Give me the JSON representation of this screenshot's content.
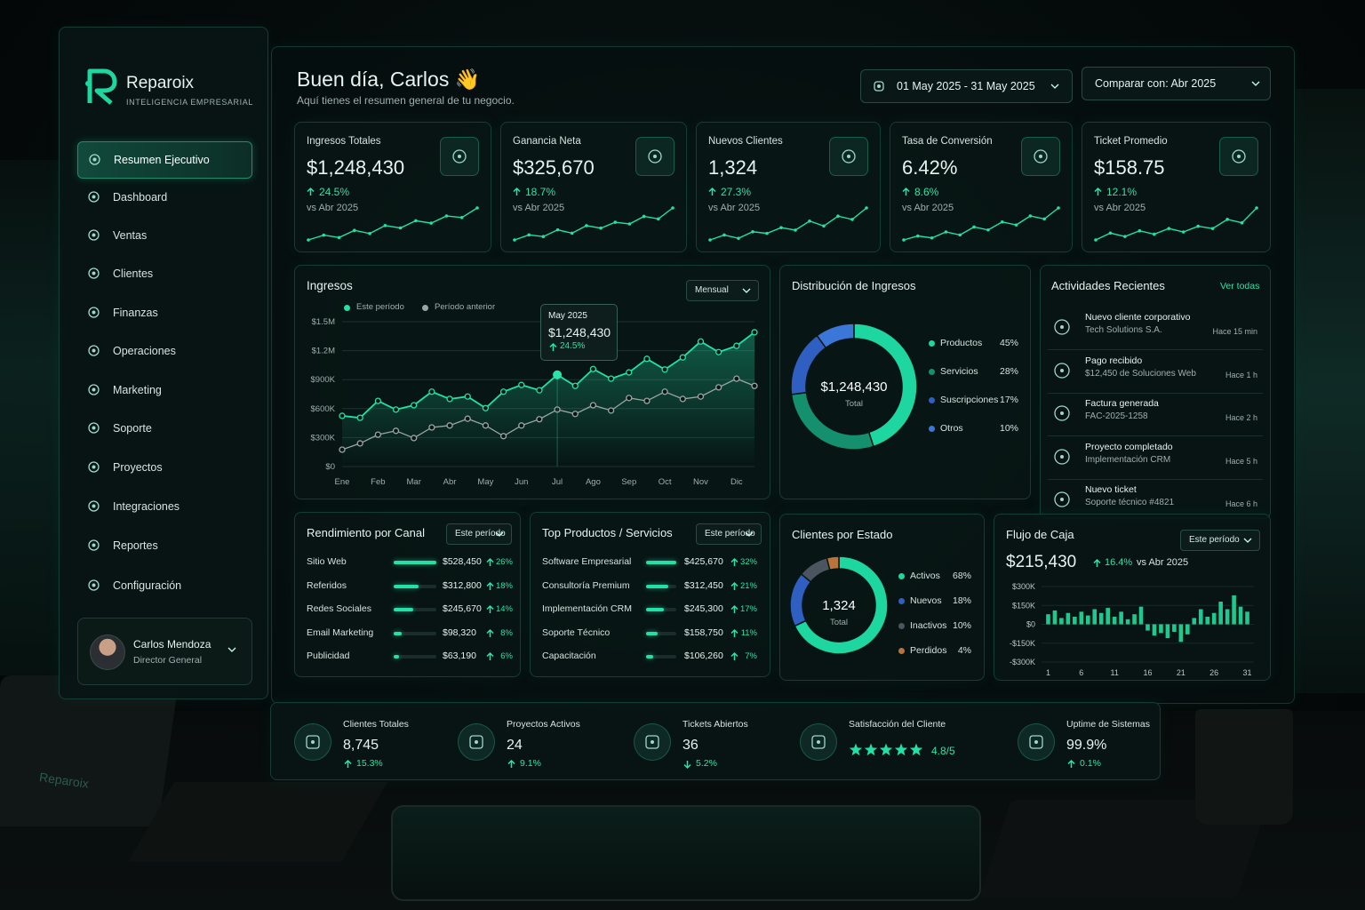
{
  "brand": {
    "name": "Reparoix",
    "tagline": "INTELIGENCIA EMPRESARIAL"
  },
  "nav": [
    "Resumen Ejecutivo",
    "Dashboard",
    "Ventas",
    "Clientes",
    "Finanzas",
    "Operaciones",
    "Marketing",
    "Soporte",
    "Proyectos",
    "Integraciones",
    "Reportes",
    "Configuración"
  ],
  "user": {
    "name": "Carlos Mendoza",
    "role": "Director General"
  },
  "header": {
    "greeting": "Buen día, Carlos 👋",
    "subtitle": "Aquí tienes el resumen general de tu negocio.",
    "date_range": "01 May 2025 - 31 May 2025",
    "compare": "Comparar con: Abr 2025"
  },
  "kpis": [
    {
      "label": "Ingresos Totales",
      "value": "$1,248,430",
      "change": "24.5%",
      "compare": "vs Abr 2025",
      "trend": [
        12,
        18,
        15,
        24,
        20,
        30,
        27,
        36,
        33,
        42,
        40,
        52
      ]
    },
    {
      "label": "Ganancia Neta",
      "value": "$325,670",
      "change": "18.7%",
      "compare": "vs Abr 2025",
      "trend": [
        10,
        16,
        14,
        22,
        18,
        27,
        24,
        31,
        29,
        38,
        35,
        48
      ]
    },
    {
      "label": "Nuevos Clientes",
      "value": "1,324",
      "change": "27.3%",
      "compare": "vs Abr 2025",
      "trend": [
        11,
        17,
        13,
        21,
        19,
        26,
        23,
        34,
        28,
        40,
        36,
        50
      ]
    },
    {
      "label": "Tasa de Conversión",
      "value": "6.42%",
      "change": "8.6%",
      "compare": "vs Abr 2025",
      "trend": [
        12,
        16,
        14,
        20,
        17,
        25,
        22,
        30,
        27,
        36,
        33,
        44
      ]
    },
    {
      "label": "Ticket Promedio",
      "value": "$158.75",
      "change": "12.1%",
      "compare": "vs Abr 2025",
      "trend": [
        12,
        18,
        15,
        20,
        17,
        22,
        19,
        24,
        22,
        30,
        27,
        40
      ]
    }
  ],
  "revenue_chart": {
    "type": "line",
    "title": "Ingresos",
    "period": "Mensual",
    "categories": [
      "Ene",
      null,
      "Feb",
      null,
      "Mar",
      null,
      "Abr",
      null,
      "May",
      null,
      "Jun",
      null,
      "Jul",
      null,
      "Ago",
      null,
      "Sep",
      null,
      "Oct",
      null,
      "Nov",
      null,
      "Dic",
      null
    ],
    "series": [
      {
        "name": "Este período",
        "color": "#22e0a8",
        "values": [
          525000,
          505000,
          680000,
          590000,
          635000,
          775000,
          700000,
          725000,
          605000,
          775000,
          845000,
          790000,
          950000,
          835000,
          1010000,
          910000,
          975000,
          1115000,
          1005000,
          1130000,
          1295000,
          1185000,
          1250000,
          1390000
        ]
      },
      {
        "name": "Período anterior",
        "color": "#9aa6a3",
        "values": [
          175000,
          240000,
          330000,
          370000,
          295000,
          405000,
          425000,
          495000,
          425000,
          315000,
          425000,
          490000,
          590000,
          545000,
          635000,
          580000,
          710000,
          680000,
          775000,
          700000,
          725000,
          820000,
          910000,
          835000
        ]
      }
    ],
    "ylim": [
      0,
      1500000
    ],
    "yticks": [
      {
        "value": 0,
        "label": "$0"
      },
      {
        "value": 300000,
        "label": "$300K"
      },
      {
        "value": 600000,
        "label": "$600K"
      },
      {
        "value": 900000,
        "label": "$900K"
      },
      {
        "value": 1200000,
        "label": "$1.2M"
      },
      {
        "value": 1500000,
        "label": "$1.5M"
      }
    ],
    "grid": true,
    "tooltip": {
      "title": "May 2025",
      "value": "$1,248,430",
      "change": "24.5%"
    }
  },
  "distribution": {
    "type": "pie",
    "title": "Distribución de Ingresos",
    "center_value": "$1,248,430",
    "center_label": "Total",
    "categories": [
      "Productos",
      "Servicios",
      "Suscripciones",
      "Otros"
    ],
    "values": [
      45,
      28,
      17,
      10
    ],
    "value_labels": [
      "45%",
      "28%",
      "17%",
      "10%"
    ],
    "colors": [
      "#1ed6a0",
      "#15906e",
      "#2f5fc0",
      "#3a77d8"
    ]
  },
  "activities": {
    "title": "Actividades Recientes",
    "link": "Ver todas",
    "items": [
      {
        "title": "Nuevo cliente corporativo",
        "detail": "Tech Solutions S.A.",
        "time": "Hace 15 min"
      },
      {
        "title": "Pago recibido",
        "detail": "$12,450 de Soluciones Web",
        "time": "Hace 1 h"
      },
      {
        "title": "Factura generada",
        "detail": "FAC-2025-1258",
        "time": "Hace 2 h"
      },
      {
        "title": "Proyecto completado",
        "detail": "Implementación CRM",
        "time": "Hace 5 h"
      },
      {
        "title": "Nuevo ticket",
        "detail": "Soporte técnico #4821",
        "time": "Hace 6 h"
      }
    ]
  },
  "channels": {
    "title": "Rendimiento por Canal",
    "period": "Este período",
    "categories": [
      "Sitio Web",
      "Referidos",
      "Redes Sociales",
      "Email Marketing",
      "Publicidad"
    ],
    "values": [
      528450,
      312800,
      245670,
      98320,
      63190
    ],
    "value_labels": [
      "$528,450",
      "$312,800",
      "$245,670",
      "$98,320",
      "$63,190"
    ],
    "changes": [
      "26%",
      "18%",
      "14%",
      "8%",
      "6%"
    ]
  },
  "products": {
    "title": "Top Productos / Servicios",
    "period": "Este período",
    "categories": [
      "Software Empresarial",
      "Consultoría Premium",
      "Implementación CRM",
      "Soporte Técnico",
      "Capacitación"
    ],
    "values": [
      425670,
      312450,
      245300,
      158750,
      106260
    ],
    "value_labels": [
      "$425,670",
      "$312,450",
      "$245,300",
      "$158,750",
      "$106,260"
    ],
    "changes": [
      "32%",
      "21%",
      "17%",
      "11%",
      "7%"
    ]
  },
  "clients": {
    "type": "pie",
    "title": "Clientes por Estado",
    "center_value": "1,324",
    "center_label": "Total",
    "categories": [
      "Activos",
      "Nuevos",
      "Inactivos",
      "Perdidos"
    ],
    "values": [
      68,
      18,
      10,
      4
    ],
    "value_labels": [
      "68%",
      "18%",
      "10%",
      "4%"
    ],
    "colors": [
      "#1ed6a0",
      "#2f5fc0",
      "#4a5560",
      "#b8743a"
    ]
  },
  "cash_flow": {
    "type": "bar",
    "title": "Flujo de Caja",
    "period": "Este período",
    "total": "$215,430",
    "change": "16.4%",
    "compare": "vs Abr 2025",
    "color": "#1ec98f",
    "x": [
      1,
      2,
      3,
      4,
      5,
      6,
      7,
      8,
      9,
      10,
      11,
      12,
      13,
      14,
      15,
      16,
      17,
      18,
      19,
      20,
      21,
      22,
      23,
      24,
      25,
      26,
      27,
      28,
      29,
      30,
      31
    ],
    "values": [
      80000,
      110000,
      50000,
      90000,
      60000,
      100000,
      70000,
      120000,
      90000,
      130000,
      60000,
      100000,
      40000,
      80000,
      140000,
      -50000,
      -90000,
      -70000,
      -110000,
      -60000,
      -140000,
      -80000,
      50000,
      120000,
      60000,
      90000,
      180000,
      120000,
      230000,
      140000,
      100000
    ],
    "xlim": [
      0,
      32
    ],
    "xticks": [
      1,
      6,
      11,
      16,
      21,
      26,
      31
    ],
    "ylim": [
      -300000,
      300000
    ],
    "yticks": [
      {
        "value": 300000,
        "label": "$300K"
      },
      {
        "value": 150000,
        "label": "$150K"
      },
      {
        "value": 0,
        "label": "$0"
      },
      {
        "value": -150000,
        "label": "-$150K"
      },
      {
        "value": -300000,
        "label": "-$300K"
      }
    ]
  },
  "stats": [
    {
      "label": "Clientes Totales",
      "value": "8,745",
      "change": "15.3%",
      "direction": "up"
    },
    {
      "label": "Proyectos Activos",
      "value": "24",
      "change": "9.1%",
      "direction": "up"
    },
    {
      "label": "Tickets Abiertos",
      "value": "36",
      "change": "5.2%",
      "direction": "down"
    },
    {
      "label": "Satisfacción del Cliente",
      "value": "4.8/5"
    },
    {
      "label": "Uptime de Sistemas",
      "value": "99.9%",
      "change": "0.1%",
      "direction": "up"
    }
  ],
  "background": {
    "laptop_brand": "Reparoix"
  }
}
